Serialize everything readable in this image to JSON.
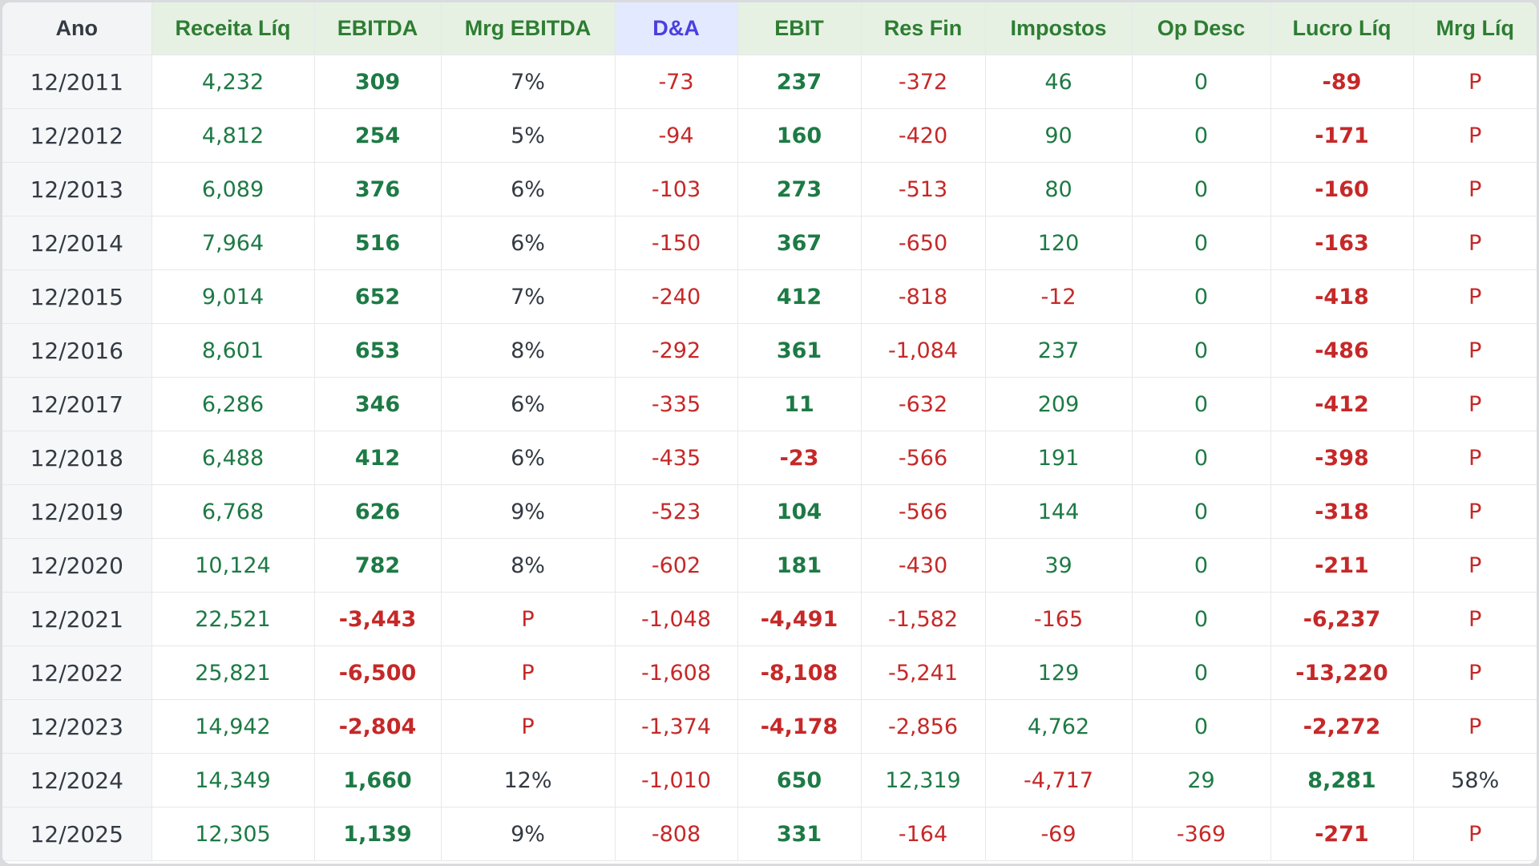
{
  "colors": {
    "positive": "#1d7a45",
    "negative": "#c62828",
    "neutral": "#333a42",
    "header_bg": "#e6f1e4",
    "header_text": "#2e7d32",
    "da_header_bg": "#e3e9ff",
    "da_header_text": "#4a3fe0",
    "year_bg": "#f6f7f9"
  },
  "table": {
    "headers": [
      "Ano",
      "Receita Líq",
      "EBITDA",
      "Mrg EBITDA",
      "D&A",
      "EBIT",
      "Res Fin",
      "Impostos",
      "Op Desc",
      "Lucro Líq",
      "Mrg Líq"
    ],
    "rows": [
      [
        "12/2011",
        "4,232",
        "309",
        "7%",
        "-73",
        "237",
        "-372",
        "46",
        "0",
        "-89",
        "P"
      ],
      [
        "12/2012",
        "4,812",
        "254",
        "5%",
        "-94",
        "160",
        "-420",
        "90",
        "0",
        "-171",
        "P"
      ],
      [
        "12/2013",
        "6,089",
        "376",
        "6%",
        "-103",
        "273",
        "-513",
        "80",
        "0",
        "-160",
        "P"
      ],
      [
        "12/2014",
        "7,964",
        "516",
        "6%",
        "-150",
        "367",
        "-650",
        "120",
        "0",
        "-163",
        "P"
      ],
      [
        "12/2015",
        "9,014",
        "652",
        "7%",
        "-240",
        "412",
        "-818",
        "-12",
        "0",
        "-418",
        "P"
      ],
      [
        "12/2016",
        "8,601",
        "653",
        "8%",
        "-292",
        "361",
        "-1,084",
        "237",
        "0",
        "-486",
        "P"
      ],
      [
        "12/2017",
        "6,286",
        "346",
        "6%",
        "-335",
        "11",
        "-632",
        "209",
        "0",
        "-412",
        "P"
      ],
      [
        "12/2018",
        "6,488",
        "412",
        "6%",
        "-435",
        "-23",
        "-566",
        "191",
        "0",
        "-398",
        "P"
      ],
      [
        "12/2019",
        "6,768",
        "626",
        "9%",
        "-523",
        "104",
        "-566",
        "144",
        "0",
        "-318",
        "P"
      ],
      [
        "12/2020",
        "10,124",
        "782",
        "8%",
        "-602",
        "181",
        "-430",
        "39",
        "0",
        "-211",
        "P"
      ],
      [
        "12/2021",
        "22,521",
        "-3,443",
        "P",
        "-1,048",
        "-4,491",
        "-1,582",
        "-165",
        "0",
        "-6,237",
        "P"
      ],
      [
        "12/2022",
        "25,821",
        "-6,500",
        "P",
        "-1,608",
        "-8,108",
        "-5,241",
        "129",
        "0",
        "-13,220",
        "P"
      ],
      [
        "12/2023",
        "14,942",
        "-2,804",
        "P",
        "-1,374",
        "-4,178",
        "-2,856",
        "4,762",
        "0",
        "-2,272",
        "P"
      ],
      [
        "12/2024",
        "14,349",
        "1,660",
        "12%",
        "-1,010",
        "650",
        "12,319",
        "-4,717",
        "29",
        "8,281",
        "58%"
      ],
      [
        "12/2025",
        "12,305",
        "1,139",
        "9%",
        "-808",
        "331",
        "-164",
        "-69",
        "-369",
        "-271",
        "P"
      ]
    ]
  }
}
